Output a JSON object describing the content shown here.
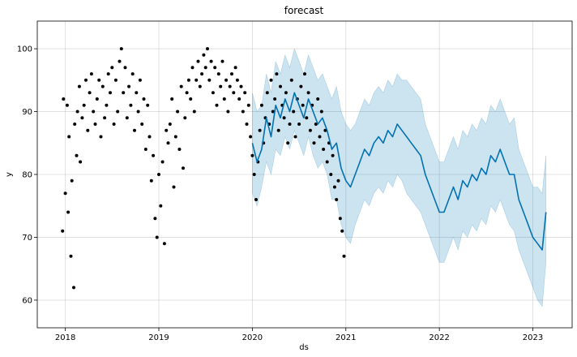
{
  "chart_data": {
    "type": "line",
    "title": "forecast",
    "xlabel": "ds",
    "ylabel": "y",
    "xlim": [
      2017.7,
      2023.42
    ],
    "ylim": [
      55.6,
      104.4
    ],
    "x_ticks": [
      {
        "value": 2018,
        "label": "2018"
      },
      {
        "value": 2019,
        "label": "2019"
      },
      {
        "value": 2020,
        "label": "2020"
      },
      {
        "value": 2021,
        "label": "2021"
      },
      {
        "value": 2022,
        "label": "2022"
      },
      {
        "value": 2023,
        "label": "2023"
      }
    ],
    "y_ticks": [
      {
        "value": 60,
        "label": "60"
      },
      {
        "value": 70,
        "label": "70"
      },
      {
        "value": 80,
        "label": "80"
      },
      {
        "value": 90,
        "label": "90"
      },
      {
        "value": 100,
        "label": "100"
      }
    ],
    "grid": true,
    "colors": {
      "observed": "#000000",
      "forecast": "#0072B2",
      "interval": "#0072B2"
    },
    "series": [
      {
        "kind": "scatter",
        "x": [
          2017.97,
          2017.98,
          2018.0,
          2018.02,
          2018.03,
          2018.04,
          2018.06,
          2018.07,
          2018.09,
          2018.1,
          2018.12,
          2018.13,
          2018.15,
          2018.16,
          2018.18,
          2018.2,
          2018.22,
          2018.24,
          2018.26,
          2018.28,
          2018.3,
          2018.32,
          2018.34,
          2018.36,
          2018.38,
          2018.4,
          2018.42,
          2018.44,
          2018.46,
          2018.48,
          2018.5,
          2018.52,
          2018.54,
          2018.56,
          2018.58,
          2018.6,
          2018.62,
          2018.64,
          2018.66,
          2018.68,
          2018.7,
          2018.72,
          2018.74,
          2018.76,
          2018.78,
          2018.8,
          2018.82,
          2018.84,
          2018.86,
          2018.88,
          2018.9,
          2018.92,
          2018.94,
          2018.96,
          2018.98,
          2019.0,
          2019.02,
          2019.04,
          2019.06,
          2019.08,
          2019.1,
          2019.12,
          2019.14,
          2019.16,
          2019.18,
          2019.2,
          2019.22,
          2019.24,
          2019.26,
          2019.28,
          2019.3,
          2019.32,
          2019.34,
          2019.36,
          2019.38,
          2019.4,
          2019.42,
          2019.44,
          2019.46,
          2019.48,
          2019.5,
          2019.52,
          2019.54,
          2019.56,
          2019.58,
          2019.6,
          2019.62,
          2019.64,
          2019.66,
          2019.68,
          2019.7,
          2019.72,
          2019.74,
          2019.76,
          2019.78,
          2019.8,
          2019.82,
          2019.84,
          2019.86,
          2019.88,
          2019.9,
          2019.92,
          2019.94,
          2019.96,
          2019.98,
          2020.0,
          2020.02,
          2020.04,
          2020.06,
          2020.08,
          2020.1,
          2020.12,
          2020.14,
          2020.16,
          2020.18,
          2020.2,
          2020.22,
          2020.24,
          2020.26,
          2020.28,
          2020.3,
          2020.32,
          2020.34,
          2020.36,
          2020.38,
          2020.4,
          2020.42,
          2020.44,
          2020.46,
          2020.48,
          2020.5,
          2020.52,
          2020.54,
          2020.56,
          2020.58,
          2020.6,
          2020.62,
          2020.64,
          2020.66,
          2020.68,
          2020.7,
          2020.72,
          2020.74,
          2020.76,
          2020.78,
          2020.8,
          2020.82,
          2020.84,
          2020.86,
          2020.88,
          2020.9,
          2020.92,
          2020.94,
          2020.96,
          2020.98
        ],
        "y": [
          71,
          92,
          77,
          91,
          74,
          86,
          67,
          79,
          62,
          88,
          83,
          90,
          94,
          82,
          89,
          91,
          95,
          87,
          93,
          96,
          90,
          88,
          92,
          95,
          86,
          94,
          89,
          91,
          96,
          93,
          97,
          88,
          95,
          90,
          98,
          100,
          93,
          97,
          89,
          94,
          91,
          96,
          87,
          93,
          90,
          95,
          88,
          92,
          84,
          91,
          86,
          79,
          83,
          73,
          70,
          80,
          75,
          82,
          69,
          87,
          85,
          88,
          92,
          78,
          86,
          90,
          84,
          94,
          81,
          89,
          93,
          95,
          92,
          97,
          90,
          95,
          98,
          94,
          96,
          99,
          97,
          100,
          95,
          98,
          93,
          97,
          91,
          96,
          94,
          98,
          92,
          95,
          90,
          94,
          96,
          93,
          97,
          95,
          92,
          94,
          90,
          93,
          88,
          91,
          86,
          83,
          80,
          76,
          82,
          87,
          91,
          85,
          89,
          93,
          88,
          95,
          90,
          92,
          96,
          87,
          94,
          91,
          89,
          93,
          85,
          88,
          95,
          90,
          86,
          92,
          88,
          94,
          91,
          96,
          89,
          93,
          87,
          91,
          85,
          88,
          92,
          86,
          90,
          84,
          87,
          82,
          85,
          80,
          83,
          78,
          76,
          79,
          73,
          71,
          67
        ]
      },
      {
        "kind": "forecast",
        "x": [
          2020.0,
          2020.05,
          2020.1,
          2020.15,
          2020.2,
          2020.25,
          2020.3,
          2020.35,
          2020.4,
          2020.45,
          2020.5,
          2020.55,
          2020.6,
          2020.65,
          2020.7,
          2020.75,
          2020.8,
          2020.85,
          2020.9,
          2020.95,
          2021.0,
          2021.05,
          2021.1,
          2021.15,
          2021.2,
          2021.25,
          2021.3,
          2021.35,
          2021.4,
          2021.45,
          2021.5,
          2021.55,
          2021.6,
          2021.65,
          2021.7,
          2021.75,
          2021.8,
          2021.85,
          2021.9,
          2021.95,
          2022.0,
          2022.05,
          2022.1,
          2022.15,
          2022.2,
          2022.25,
          2022.3,
          2022.35,
          2022.4,
          2022.45,
          2022.5,
          2022.55,
          2022.6,
          2022.65,
          2022.7,
          2022.75,
          2022.8,
          2022.85,
          2022.9,
          2022.95,
          2023.0,
          2023.05,
          2023.1,
          2023.14
        ],
        "y": [
          85,
          82,
          84,
          89,
          86,
          91,
          89,
          92,
          90,
          93,
          91,
          89,
          92,
          90,
          88,
          89,
          87,
          84,
          85,
          81,
          79,
          78,
          80,
          82,
          84,
          83,
          85,
          86,
          85,
          87,
          86,
          88,
          87,
          86,
          85,
          84,
          83,
          80,
          78,
          76,
          74,
          74,
          76,
          78,
          76,
          79,
          78,
          80,
          79,
          81,
          80,
          83,
          82,
          84,
          82,
          80,
          80,
          76,
          74,
          72,
          70,
          69,
          68,
          74
        ],
        "lower": [
          77,
          75,
          78,
          82,
          80,
          84,
          83,
          86,
          84,
          87,
          85,
          83,
          86,
          83,
          81,
          82,
          80,
          76,
          76,
          72,
          70,
          69,
          72,
          74,
          76,
          75,
          77,
          78,
          77,
          79,
          78,
          80,
          79,
          77,
          76,
          75,
          74,
          72,
          70,
          68,
          66,
          66,
          68,
          70,
          68,
          71,
          70,
          72,
          71,
          73,
          72,
          75,
          74,
          76,
          74,
          72,
          71,
          68,
          66,
          64,
          62,
          60,
          59,
          66
        ],
        "upper": [
          93,
          90,
          91,
          96,
          93,
          98,
          96,
          99,
          97,
          100,
          98,
          96,
          99,
          97,
          95,
          96,
          94,
          92,
          94,
          90,
          88,
          87,
          88,
          90,
          92,
          91,
          93,
          94,
          93,
          95,
          94,
          96,
          95,
          95,
          94,
          93,
          92,
          88,
          86,
          84,
          82,
          82,
          84,
          86,
          84,
          87,
          86,
          88,
          87,
          89,
          88,
          91,
          90,
          92,
          90,
          88,
          89,
          84,
          82,
          80,
          78,
          78,
          77,
          83
        ]
      }
    ]
  }
}
